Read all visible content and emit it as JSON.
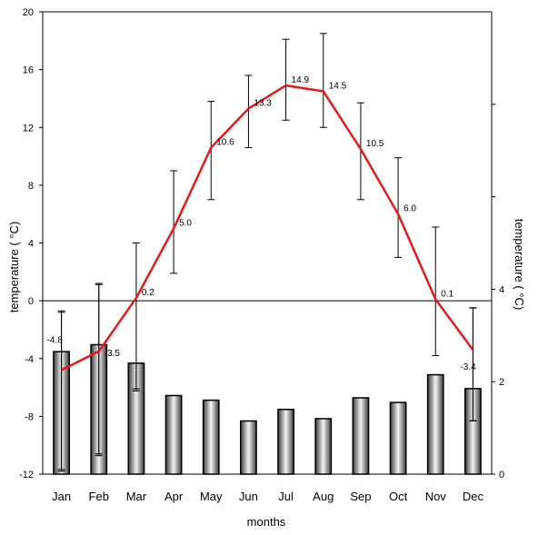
{
  "chart_data": {
    "type": "bar+line",
    "categories": [
      "Jan",
      "Feb",
      "Mar",
      "Apr",
      "May",
      "Jun",
      "Jul",
      "Aug",
      "Sep",
      "Oct",
      "Nov",
      "Dec"
    ],
    "xlabel": "months",
    "ylabel_left": "temperature ( °C)",
    "ylabel_right": "temperature ( °C)",
    "left_axis": {
      "ylim": [
        -12,
        20
      ],
      "ticks": [
        "20",
        "16",
        "12",
        "8",
        "4",
        "0",
        "-4",
        "-8",
        "-12"
      ],
      "tick_values": [
        20,
        16,
        12,
        8,
        4,
        0,
        -4,
        -8,
        -12
      ]
    },
    "right_axis": {
      "ylim": [
        0,
        10
      ],
      "ticks": [
        "0",
        "2",
        "4"
      ],
      "tick_values": [
        0,
        2,
        4
      ],
      "minor_ticks": [
        6,
        8
      ]
    },
    "line_series": {
      "color": "#e31a1c",
      "values": [
        -4.8,
        -3.5,
        0.2,
        5.0,
        10.6,
        13.3,
        14.9,
        14.5,
        10.5,
        6.0,
        0.1,
        -3.4
      ],
      "labels": [
        "-4.8",
        "-3.5",
        "0.2",
        "5.0",
        "10.6",
        "13.3",
        "14.9",
        "14.5",
        "10.5",
        "6.0",
        "0.1",
        "-3.4"
      ],
      "error_low": [
        -11.8,
        -10.6,
        -6.1,
        1.9,
        7.0,
        10.6,
        12.5,
        12.0,
        7.0,
        3.0,
        -3.8,
        -8.3
      ],
      "error_high": [
        -0.7,
        1.2,
        4.0,
        9.0,
        13.8,
        15.6,
        18.1,
        18.5,
        13.7,
        9.9,
        5.1,
        -0.5
      ]
    },
    "bar_series": {
      "axis": "right",
      "values": [
        2.65,
        2.8,
        2.4,
        1.7,
        1.6,
        1.15,
        1.4,
        1.2,
        1.65,
        1.55,
        2.15,
        1.85
      ],
      "error_low": [
        0.1,
        0.4,
        1.8,
        null,
        null,
        null,
        null,
        null,
        null,
        null,
        null,
        1.15
      ],
      "error_high": [
        3.5,
        4.1,
        null,
        null,
        null,
        null,
        null,
        null,
        null,
        null,
        null,
        3.6
      ]
    },
    "grid": false,
    "legend": false
  }
}
